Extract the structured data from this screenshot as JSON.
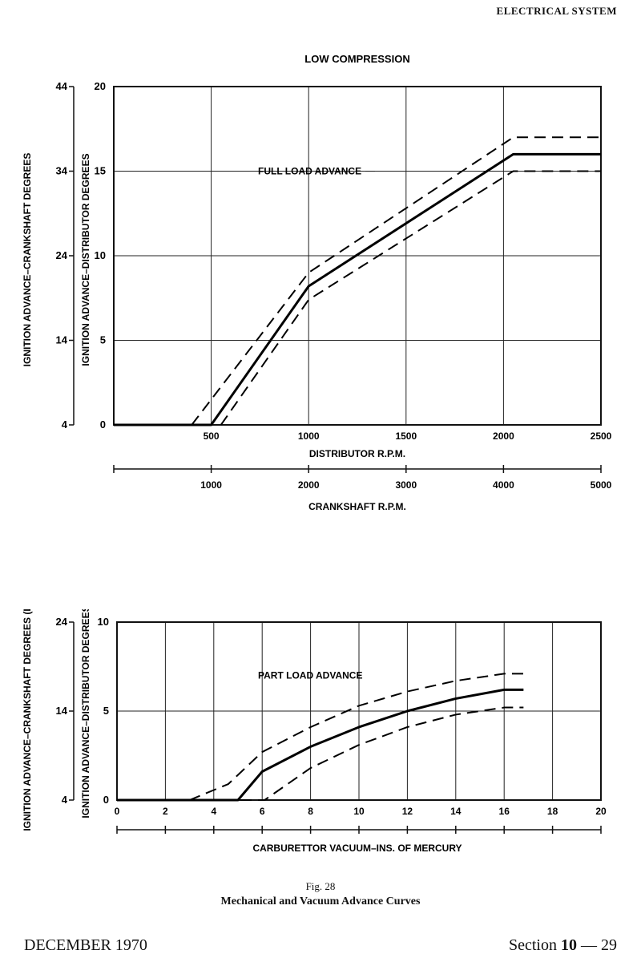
{
  "page": {
    "header": "ELECTRICAL SYSTEM",
    "figure_label": "Fig. 28",
    "figure_caption": "Mechanical and Vacuum Advance Curves",
    "footer_date": "DECEMBER 1970",
    "footer_section_prefix": "Section",
    "footer_section_number": "10",
    "footer_section_suffix": "— 29"
  },
  "chart_data": [
    {
      "type": "line",
      "title": "LOW COMPRESSION",
      "annotation": "FULL LOAD ADVANCE",
      "xlabel": "DISTRIBUTOR R.P.M.",
      "xlim": [
        0,
        2500
      ],
      "x_ticks": [
        500,
        1000,
        1500,
        2000,
        2500
      ],
      "x2label": "CRANKSHAFT R.P.M.",
      "x2_ticks": [
        1000,
        2000,
        3000,
        4000,
        5000
      ],
      "ylabel": "IGNITION ADVANCE–DISTRIBUTOR DEGREES",
      "ylim": [
        0,
        20
      ],
      "y_ticks": [
        0,
        5,
        10,
        15,
        20
      ],
      "y2label": "IGNITION ADVANCE–CRANKSHAFT DEGREES",
      "y2_ticks": [
        4,
        14,
        24,
        34,
        44
      ],
      "grid": true,
      "series": [
        {
          "style": "solid",
          "x": [
            0,
            500,
            1000,
            2050,
            2500
          ],
          "y": [
            0,
            0,
            8.2,
            16,
            16
          ]
        },
        {
          "style": "dashed",
          "x": [
            400,
            1000,
            2050,
            2500
          ],
          "y": [
            0,
            9,
            17,
            17
          ]
        },
        {
          "style": "dashed",
          "x": [
            550,
            1000,
            2050,
            2500
          ],
          "y": [
            0,
            7.4,
            15,
            15
          ]
        }
      ]
    },
    {
      "type": "line",
      "annotation": "PART LOAD ADVANCE",
      "xlabel": "CARBURETTOR VACUUM–INS. OF MERCURY",
      "xlim": [
        0,
        20
      ],
      "x_ticks": [
        0,
        2,
        4,
        6,
        8,
        10,
        12,
        14,
        16,
        18,
        20
      ],
      "ylabel": "IGNITION ADVANCE–DISTRIBUTOR DEGREES",
      "ylim": [
        0,
        10
      ],
      "y_ticks": [
        0,
        5,
        10
      ],
      "y2label": "IGNITION ADVANCE–CRANKSHAFT DEGREES (L.C)",
      "y2_ticks": [
        4,
        14,
        24
      ],
      "grid": true,
      "series": [
        {
          "style": "solid",
          "x": [
            0,
            5,
            6,
            8,
            10,
            12,
            14,
            16,
            16.8
          ],
          "y": [
            0,
            0,
            1.6,
            3.0,
            4.1,
            5.0,
            5.7,
            6.2,
            6.2
          ]
        },
        {
          "style": "dashed",
          "x": [
            3,
            4.6,
            6,
            8,
            10,
            12,
            14,
            16,
            16.8
          ],
          "y": [
            0,
            0.9,
            2.7,
            4.1,
            5.3,
            6.1,
            6.7,
            7.1,
            7.1
          ]
        },
        {
          "style": "dashed",
          "x": [
            0,
            6.1,
            8,
            10,
            12,
            14,
            16,
            16.8
          ],
          "y": [
            0,
            0,
            1.8,
            3.1,
            4.1,
            4.8,
            5.2,
            5.2
          ]
        }
      ]
    }
  ]
}
